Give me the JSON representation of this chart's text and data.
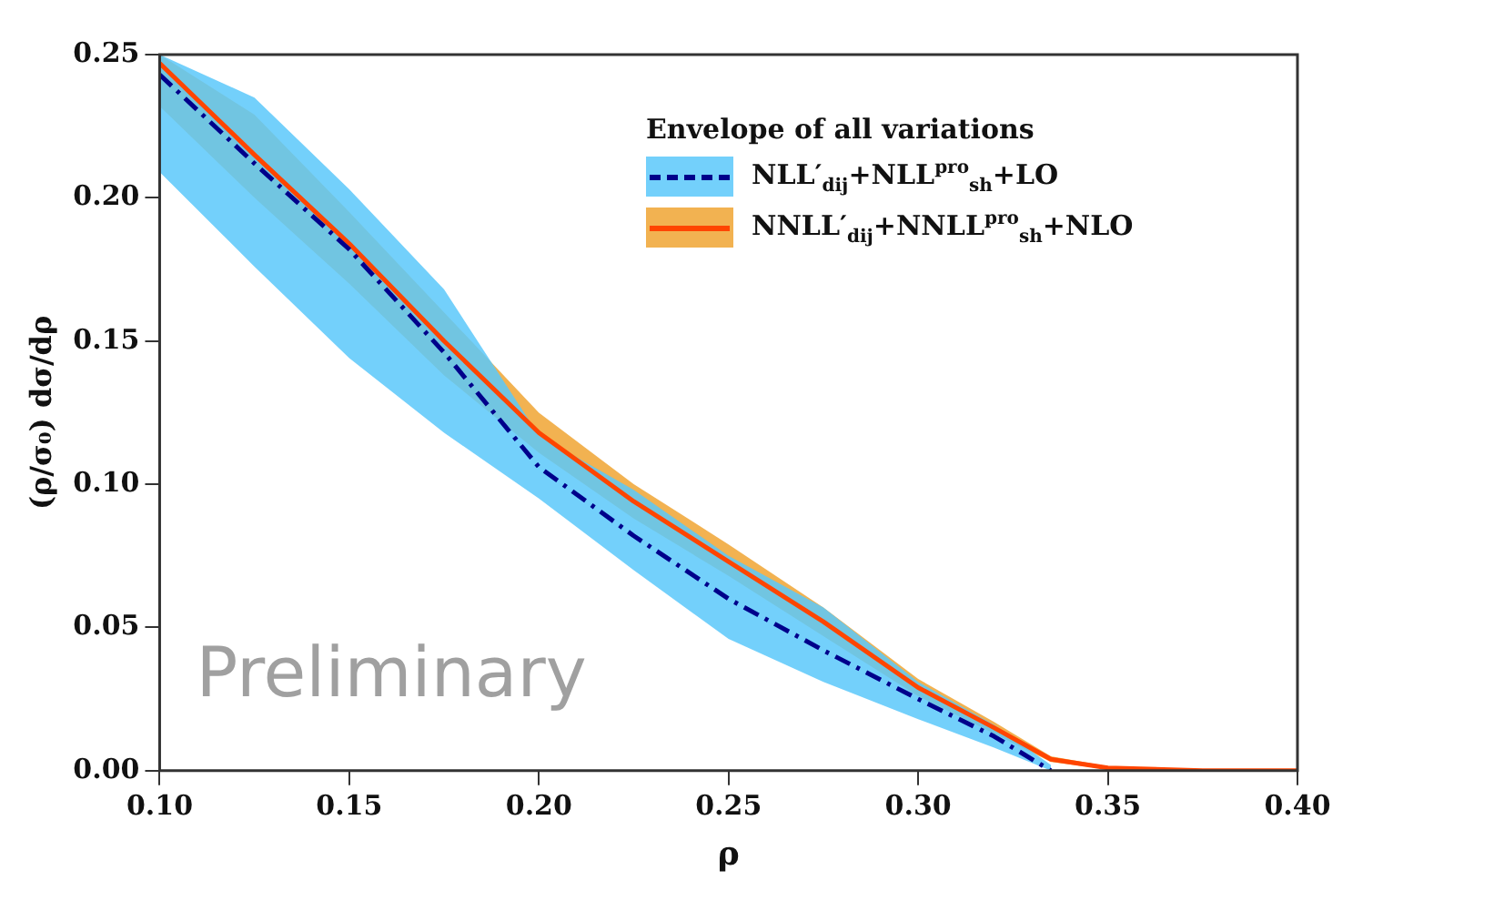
{
  "chart_data": {
    "type": "line",
    "xlabel": "ρ",
    "ylabel": "(ρ/σ₀) dσ/dρ",
    "legend_title": "Envelope of all variations",
    "x": [
      0.1,
      0.125,
      0.15,
      0.175,
      0.2,
      0.225,
      0.25,
      0.275,
      0.3,
      0.32,
      0.335,
      0.35,
      0.375,
      0.4
    ],
    "series": [
      {
        "name": "NLL′$_{dij}$+NLL$^{pro}$$_{sh}$+LO",
        "color": "#00008b",
        "line_style": "dashed",
        "values": [
          0.243,
          0.212,
          0.182,
          0.146,
          0.106,
          0.082,
          0.06,
          0.042,
          0.025,
          0.012,
          0.0,
          null,
          null,
          null
        ],
        "lower": [
          0.209,
          0.176,
          0.144,
          0.118,
          0.095,
          0.07,
          0.046,
          0.031,
          0.018,
          0.008,
          0.0,
          null,
          null,
          null
        ],
        "upper": [
          0.25,
          0.235,
          0.203,
          0.168,
          0.117,
          0.098,
          0.075,
          0.057,
          0.031,
          0.016,
          0.002,
          null,
          null,
          null
        ]
      },
      {
        "name": "NNLL′$_{dij}$+NNLL$^{pro}$$_{sh}$+NLO",
        "color": "#ff4500",
        "line_style": "solid",
        "values": [
          0.247,
          0.215,
          0.184,
          0.15,
          0.118,
          0.094,
          0.073,
          0.052,
          0.029,
          0.015,
          0.004,
          0.001,
          0.0,
          0.0
        ],
        "lower": [
          0.232,
          0.2,
          0.17,
          0.138,
          0.111,
          0.088,
          0.068,
          0.047,
          0.026,
          0.013,
          0.003,
          0.0005,
          0.0,
          0.0
        ],
        "upper": [
          0.25,
          0.229,
          0.195,
          0.16,
          0.125,
          0.1,
          0.079,
          0.057,
          0.032,
          0.017,
          0.005,
          0.0015,
          0.0,
          0.0
        ]
      }
    ],
    "xlim": [
      0.1,
      0.4
    ],
    "xticks": [
      {
        "value": 0.1,
        "label": "0.10"
      },
      0.15,
      {
        "value": 0.2,
        "label": "0.20"
      },
      0.25,
      {
        "value": 0.3,
        "label": "0.30"
      },
      0.35,
      {
        "value": 0.4,
        "label": "0.40"
      }
    ],
    "ylim": [
      0.0,
      0.25
    ],
    "yticks": [
      {
        "value": 0,
        "label": "0.00"
      },
      0.05,
      {
        "value": 0.1,
        "label": "0.10"
      },
      0.15,
      {
        "value": 0.2,
        "label": "0.20"
      },
      0.25
    ],
    "grid": false,
    "legend": "top right",
    "marker": "none",
    "annotations": [
      "Preliminary"
    ]
  }
}
